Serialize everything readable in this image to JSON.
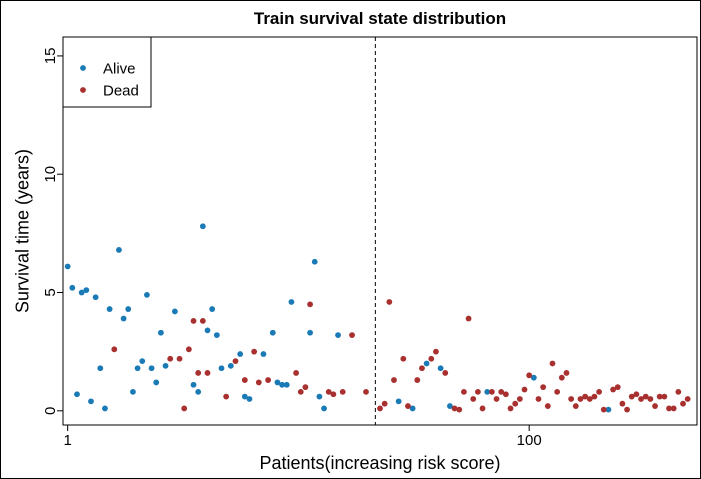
{
  "chart_data": {
    "type": "scatter",
    "title": "Train survival state distribution",
    "xlabel": "Patients(increasing risk score)",
    "ylabel": "Survival time (years)",
    "xlim": [
      0,
      136
    ],
    "ylim": [
      -0.6,
      15.8
    ],
    "x_ticks": [
      {
        "value": 1,
        "label": "1"
      },
      {
        "value": 100,
        "label": "100"
      }
    ],
    "y_ticks": [
      {
        "value": 0,
        "label": "0"
      },
      {
        "value": 5,
        "label": "5"
      },
      {
        "value": 10,
        "label": "10"
      },
      {
        "value": 15,
        "label": "15"
      }
    ],
    "cutoff_x": 67,
    "legend_position": "top-left",
    "colors": {
      "alive": "#1a7ab5",
      "dead": "#a8302f"
    },
    "series": [
      {
        "name": "Alive",
        "color": "#1a7ab5",
        "points": [
          [
            1,
            6.1
          ],
          [
            2,
            5.2
          ],
          [
            3,
            0.7
          ],
          [
            4,
            5.0
          ],
          [
            5,
            5.1
          ],
          [
            6,
            0.4
          ],
          [
            7,
            4.8
          ],
          [
            8,
            1.8
          ],
          [
            9,
            0.1
          ],
          [
            10,
            4.3
          ],
          [
            12,
            6.8
          ],
          [
            13,
            3.9
          ],
          [
            14,
            4.3
          ],
          [
            15,
            0.8
          ],
          [
            16,
            1.8
          ],
          [
            17,
            2.1
          ],
          [
            18,
            4.9
          ],
          [
            19,
            1.8
          ],
          [
            20,
            1.2
          ],
          [
            21,
            3.3
          ],
          [
            22,
            1.9
          ],
          [
            24,
            4.2
          ],
          [
            28,
            1.1
          ],
          [
            29,
            0.8
          ],
          [
            30,
            7.8
          ],
          [
            31,
            3.4
          ],
          [
            32,
            4.3
          ],
          [
            33,
            3.2
          ],
          [
            34,
            1.8
          ],
          [
            36,
            1.9
          ],
          [
            38,
            2.4
          ],
          [
            39,
            0.6
          ],
          [
            40,
            0.5
          ],
          [
            43,
            2.4
          ],
          [
            45,
            3.3
          ],
          [
            46,
            1.2
          ],
          [
            47,
            1.1
          ],
          [
            48,
            1.1
          ],
          [
            49,
            4.6
          ],
          [
            53,
            3.3
          ],
          [
            54,
            6.3
          ],
          [
            55,
            0.6
          ],
          [
            56,
            0.1
          ],
          [
            59,
            3.2
          ],
          [
            72,
            0.4
          ],
          [
            75,
            0.1
          ],
          [
            78,
            2.0
          ],
          [
            81,
            1.8
          ],
          [
            83,
            0.2
          ],
          [
            91,
            0.8
          ],
          [
            101,
            1.4
          ],
          [
            117,
            0.05
          ]
        ]
      },
      {
        "name": "Dead",
        "color": "#a8302f",
        "points": [
          [
            11,
            2.6
          ],
          [
            23,
            2.2
          ],
          [
            25,
            2.2
          ],
          [
            26,
            0.1
          ],
          [
            27,
            2.6
          ],
          [
            28,
            3.8
          ],
          [
            29,
            1.6
          ],
          [
            30,
            3.8
          ],
          [
            31,
            1.6
          ],
          [
            35,
            0.6
          ],
          [
            37,
            2.1
          ],
          [
            39,
            1.3
          ],
          [
            41,
            2.5
          ],
          [
            42,
            1.2
          ],
          [
            44,
            1.3
          ],
          [
            50,
            1.6
          ],
          [
            51,
            0.8
          ],
          [
            52,
            1.0
          ],
          [
            53,
            4.5
          ],
          [
            57,
            0.8
          ],
          [
            58,
            0.7
          ],
          [
            60,
            0.8
          ],
          [
            62,
            3.2
          ],
          [
            65,
            0.8
          ],
          [
            68,
            0.1
          ],
          [
            69,
            0.3
          ],
          [
            70,
            4.6
          ],
          [
            71,
            1.3
          ],
          [
            73,
            2.2
          ],
          [
            74,
            0.2
          ],
          [
            76,
            1.3
          ],
          [
            77,
            1.8
          ],
          [
            79,
            2.2
          ],
          [
            80,
            2.5
          ],
          [
            82,
            1.6
          ],
          [
            84,
            0.1
          ],
          [
            85,
            0.05
          ],
          [
            86,
            0.8
          ],
          [
            87,
            3.9
          ],
          [
            88,
            0.5
          ],
          [
            89,
            0.8
          ],
          [
            90,
            0.1
          ],
          [
            92,
            0.8
          ],
          [
            93,
            0.5
          ],
          [
            94,
            0.8
          ],
          [
            95,
            0.7
          ],
          [
            96,
            0.1
          ],
          [
            97,
            0.3
          ],
          [
            98,
            0.5
          ],
          [
            99,
            0.9
          ],
          [
            100,
            1.5
          ],
          [
            102,
            0.5
          ],
          [
            103,
            1.0
          ],
          [
            104,
            0.2
          ],
          [
            105,
            2.0
          ],
          [
            106,
            0.8
          ],
          [
            107,
            1.4
          ],
          [
            108,
            1.6
          ],
          [
            109,
            0.5
          ],
          [
            110,
            0.2
          ],
          [
            111,
            0.5
          ],
          [
            112,
            0.6
          ],
          [
            113,
            0.5
          ],
          [
            114,
            0.6
          ],
          [
            115,
            0.8
          ],
          [
            116,
            0.05
          ],
          [
            118,
            0.9
          ],
          [
            119,
            1.0
          ],
          [
            120,
            0.3
          ],
          [
            121,
            0.05
          ],
          [
            122,
            0.6
          ],
          [
            123,
            0.7
          ],
          [
            124,
            0.5
          ],
          [
            125,
            0.6
          ],
          [
            126,
            0.5
          ],
          [
            127,
            0.2
          ],
          [
            128,
            0.6
          ],
          [
            129,
            0.6
          ],
          [
            130,
            0.1
          ],
          [
            131,
            0.1
          ],
          [
            132,
            0.8
          ],
          [
            133,
            0.3
          ],
          [
            134,
            0.5
          ]
        ]
      }
    ]
  }
}
